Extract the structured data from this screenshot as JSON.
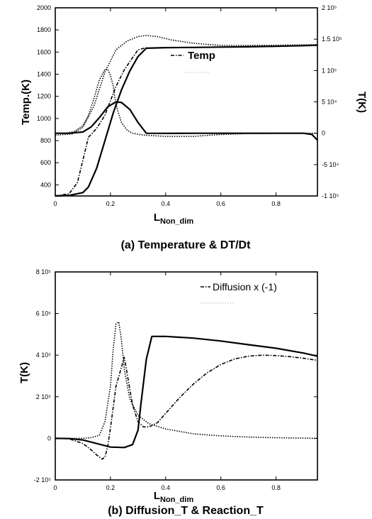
{
  "chart_data": [
    {
      "type": "line",
      "caption": "(a) Temperature & DT/Dt",
      "xlabel": "L",
      "xlabel_sub": "Non_dim",
      "ylabel": "Temp.(K)",
      "ylabel_right": "T(K)",
      "xlim": [
        0,
        0.95
      ],
      "ylim": [
        300,
        2000
      ],
      "ylim_right": [
        -100000,
        200000
      ],
      "x_ticks": [
        "0",
        "0.2",
        "0.4",
        "0.6",
        "0.8"
      ],
      "x_tick_values": [
        0,
        0.2,
        0.4,
        0.6,
        0.8
      ],
      "y_ticks": [
        "2000",
        "1800",
        "1600",
        "1400",
        "1200",
        "1000",
        "800",
        "600",
        "400"
      ],
      "y_tick_values": [
        2000,
        1800,
        1600,
        1400,
        1200,
        1000,
        800,
        600,
        400
      ],
      "y_ticks_right": [
        "2 10⁵",
        "1.5 10⁵",
        "1 10⁵",
        "5 10⁴",
        "0",
        "-5 10⁴",
        "-1 10⁵"
      ],
      "y_tick_values_right": [
        200000,
        150000,
        100000,
        50000,
        0,
        -50000,
        -100000
      ],
      "legend": [
        {
          "label": "Temp",
          "style": "dashdot"
        }
      ],
      "legend_position": "upper-middle",
      "series": [
        {
          "style": "solid",
          "axis": "left",
          "x": [
            0,
            0.05,
            0.1,
            0.12,
            0.15,
            0.18,
            0.21,
            0.24,
            0.27,
            0.3,
            0.33,
            0.4,
            0.5,
            0.6,
            0.7,
            0.8,
            0.9,
            0.95
          ],
          "y": [
            300,
            305,
            330,
            380,
            550,
            800,
            1050,
            1260,
            1430,
            1560,
            1635,
            1640,
            1642,
            1645,
            1648,
            1652,
            1658,
            1662
          ]
        },
        {
          "style": "dashdot",
          "axis": "left",
          "x": [
            0,
            0.05,
            0.08,
            0.1,
            0.12,
            0.15,
            0.18,
            0.2,
            0.22,
            0.25,
            0.3,
            0.33
          ],
          "y": [
            300,
            320,
            420,
            620,
            830,
            910,
            1030,
            1160,
            1290,
            1440,
            1620,
            1640
          ]
        },
        {
          "style": "solid",
          "axis": "right",
          "x": [
            0,
            0.05,
            0.1,
            0.13,
            0.16,
            0.19,
            0.22,
            0.24,
            0.27,
            0.3,
            0.33,
            0.4,
            0.5,
            0.6,
            0.7,
            0.8,
            0.9,
            0.93,
            0.95
          ],
          "y": [
            0,
            0,
            2000,
            10000,
            25000,
            42000,
            50000,
            49000,
            38000,
            17000,
            0,
            -200,
            0,
            0,
            0,
            0,
            0,
            -2000,
            -11000
          ]
        },
        {
          "style": "dotted",
          "axis": "right",
          "x": [
            0,
            0.04,
            0.07,
            0.1,
            0.12,
            0.14,
            0.16,
            0.18,
            0.19,
            0.2,
            0.21,
            0.22,
            0.24,
            0.26,
            0.28,
            0.32,
            0.4,
            0.5,
            0.6,
            0.7,
            0.8,
            0.9,
            0.95
          ],
          "y": [
            0,
            0,
            3000,
            12000,
            28000,
            55000,
            85000,
            102000,
            102000,
            92000,
            75000,
            45000,
            17000,
            5000,
            0,
            -3000,
            -5000,
            -5000,
            -2000,
            -500,
            0,
            0,
            0
          ]
        },
        {
          "style": "dotted",
          "axis": "left",
          "x": [
            0,
            0.06,
            0.1,
            0.14,
            0.18,
            0.22,
            0.26,
            0.3,
            0.33,
            0.37,
            0.42,
            0.5,
            0.6,
            0.7,
            0.8,
            0.9,
            0.95
          ],
          "y": [
            850,
            860,
            920,
            1110,
            1420,
            1620,
            1700,
            1740,
            1750,
            1740,
            1710,
            1680,
            1660,
            1660,
            1662,
            1665,
            1668
          ]
        }
      ]
    },
    {
      "type": "line",
      "caption": "(b) Diffusion_T & Reaction_T",
      "xlabel": "L",
      "xlabel_sub": "Non_dim",
      "ylabel": "T(K)",
      "xlim": [
        0,
        0.95
      ],
      "ylim": [
        -200000,
        800000
      ],
      "x_ticks": [
        "0",
        "0.2",
        "0.4",
        "0.6",
        "0.8"
      ],
      "x_tick_values": [
        0,
        0.2,
        0.4,
        0.6,
        0.8
      ],
      "y_ticks": [
        "8 10⁵",
        "6 10⁵",
        "4 10⁵",
        "2 10⁵",
        "0",
        "-2 10⁵"
      ],
      "y_tick_values": [
        800000,
        600000,
        400000,
        200000,
        0,
        -200000
      ],
      "legend": [
        {
          "label": "Diffusion x (-1)",
          "style": "dashdot"
        }
      ],
      "legend_position": "upper-right",
      "series": [
        {
          "style": "solid",
          "x": [
            0,
            0.05,
            0.1,
            0.15,
            0.2,
            0.25,
            0.28,
            0.3,
            0.31,
            0.33,
            0.35,
            0.4,
            0.5,
            0.6,
            0.7,
            0.8,
            0.9,
            0.95
          ],
          "y": [
            0,
            -1000,
            -8000,
            -25000,
            -42000,
            -44000,
            -30000,
            40000,
            160000,
            380000,
            490000,
            490000,
            482000,
            468000,
            450000,
            433000,
            410000,
            395000
          ]
        },
        {
          "style": "dotted",
          "x": [
            0,
            0.1,
            0.13,
            0.16,
            0.18,
            0.2,
            0.21,
            0.22,
            0.23,
            0.24,
            0.25,
            0.27,
            0.3,
            0.34,
            0.4,
            0.5,
            0.6,
            0.7,
            0.8,
            0.9,
            0.95
          ],
          "y": [
            0,
            0,
            3000,
            15000,
            80000,
            250000,
            430000,
            550000,
            560000,
            470000,
            330000,
            190000,
            110000,
            70000,
            45000,
            22000,
            12000,
            6000,
            3000,
            1000,
            0
          ]
        },
        {
          "style": "dashdot",
          "x": [
            0,
            0.05,
            0.1,
            0.13,
            0.15,
            0.17,
            0.18,
            0.19,
            0.2,
            0.22,
            0.25,
            0.28,
            0.3,
            0.32,
            0.34,
            0.37,
            0.4,
            0.45,
            0.5,
            0.55,
            0.6,
            0.65,
            0.7,
            0.75,
            0.8,
            0.85,
            0.9,
            0.95
          ],
          "y": [
            0,
            -2000,
            -25000,
            -55000,
            -80000,
            -100000,
            -90000,
            -40000,
            50000,
            250000,
            390000,
            160000,
            80000,
            55000,
            55000,
            75000,
            120000,
            195000,
            260000,
            315000,
            355000,
            382000,
            395000,
            400000,
            398000,
            393000,
            385000,
            375000
          ]
        }
      ]
    }
  ]
}
